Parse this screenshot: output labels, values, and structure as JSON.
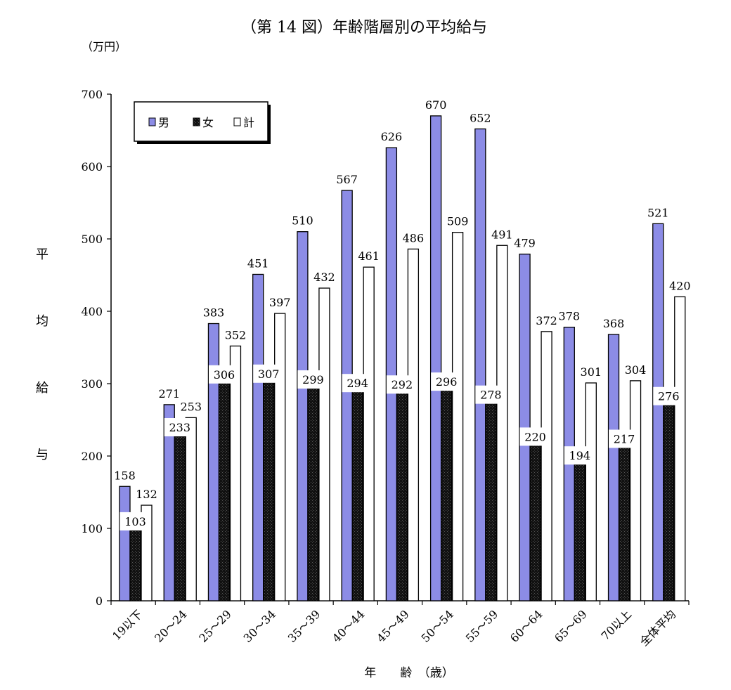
{
  "chart_data": {
    "type": "bar",
    "title": "（第 14 図）年齢階層別の平均給与",
    "unit_label": "（万円）",
    "ylabel_chars": [
      "平",
      "均",
      "給",
      "与"
    ],
    "xlabel": "年　　齢　（歳）",
    "categories": [
      "19以下",
      "20～24",
      "25～29",
      "30～34",
      "35～39",
      "40～44",
      "45～49",
      "50～54",
      "55～59",
      "60～64",
      "65～69",
      "70以上",
      "全体平均"
    ],
    "series": [
      {
        "name": "男",
        "color": "#8c8ce6",
        "values": [
          158,
          271,
          383,
          451,
          510,
          567,
          626,
          670,
          652,
          479,
          378,
          368,
          521
        ]
      },
      {
        "name": "女",
        "color": "#111111",
        "values": [
          103,
          233,
          306,
          307,
          299,
          294,
          292,
          296,
          278,
          220,
          194,
          217,
          276
        ]
      },
      {
        "name": "計",
        "color": "#ffffff",
        "values": [
          132,
          253,
          352,
          397,
          432,
          461,
          486,
          509,
          491,
          372,
          301,
          304,
          420
        ]
      }
    ],
    "ylim": [
      0,
      700
    ],
    "yticks": [
      0,
      100,
      200,
      300,
      400,
      500,
      600,
      700
    ],
    "legend_position": "top-left",
    "grid": false
  }
}
